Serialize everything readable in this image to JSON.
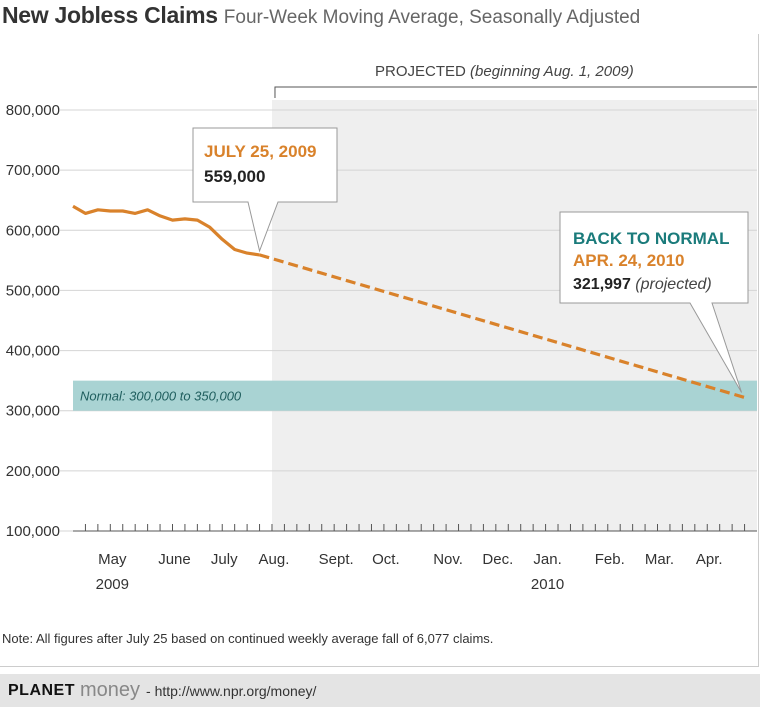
{
  "header": {
    "title": "New Jobless Claims",
    "subtitle": "Four-Week Moving Average, Seasonally Adjusted"
  },
  "note": "Note: All figures after July 25 based on continued weekly average fall of 6,077 claims.",
  "footer": {
    "brand_bold": "PLANET",
    "brand_light": "money",
    "url": "- http://www.npr.org/money/"
  },
  "colors": {
    "line": "#d9822b",
    "projected_band": "#efefef",
    "normal_band": "#a9d3d3",
    "teal_text": "#1a7b7b",
    "orange_text": "#d9822b"
  },
  "chart_data": {
    "type": "line",
    "ylim": [
      100000,
      800000
    ],
    "y_ticks": [
      100000,
      200000,
      300000,
      400000,
      500000,
      600000,
      700000,
      800000
    ],
    "y_tick_labels": [
      "100,000",
      "200,000",
      "300,000",
      "400,000",
      "500,000",
      "600,000",
      "700,000",
      "800,000"
    ],
    "x_range": [
      "2009-04-11",
      "2010-05-01"
    ],
    "x_tick_labels": [
      {
        "label": "May",
        "date": "2009-05-02"
      },
      {
        "label": "June",
        "date": "2009-06-06"
      },
      {
        "label": "July",
        "date": "2009-07-04"
      },
      {
        "label": "Aug.",
        "date": "2009-08-01"
      },
      {
        "label": "Sept.",
        "date": "2009-09-05"
      },
      {
        "label": "Oct.",
        "date": "2009-10-03"
      },
      {
        "label": "Nov.",
        "date": "2009-11-07"
      },
      {
        "label": "Dec.",
        "date": "2009-12-05"
      },
      {
        "label": "Jan.",
        "date": "2010-01-02"
      },
      {
        "label": "Feb.",
        "date": "2010-02-06"
      },
      {
        "label": "Mar.",
        "date": "2010-03-06"
      },
      {
        "label": "Apr.",
        "date": "2010-04-03"
      }
    ],
    "year_labels": [
      {
        "label": "2009",
        "date": "2009-05-02"
      },
      {
        "label": "2010",
        "date": "2010-01-02"
      }
    ],
    "series": [
      {
        "style": "solid",
        "points": [
          [
            "2009-04-11",
            640000
          ],
          [
            "2009-04-18",
            628000
          ],
          [
            "2009-04-25",
            634000
          ],
          [
            "2009-05-02",
            632000
          ],
          [
            "2009-05-09",
            632000
          ],
          [
            "2009-05-16",
            628000
          ],
          [
            "2009-05-23",
            634000
          ],
          [
            "2009-05-30",
            624000
          ],
          [
            "2009-06-06",
            617000
          ],
          [
            "2009-06-13",
            619000
          ],
          [
            "2009-06-20",
            617000
          ],
          [
            "2009-06-27",
            605000
          ],
          [
            "2009-07-04",
            585000
          ],
          [
            "2009-07-11",
            568000
          ],
          [
            "2009-07-18",
            562000
          ],
          [
            "2009-07-25",
            559000
          ]
        ]
      },
      {
        "style": "dashed",
        "points": [
          [
            "2009-07-25",
            559000
          ],
          [
            "2010-04-24",
            321997
          ]
        ]
      }
    ],
    "projected_region": {
      "start": "2009-08-01",
      "label": "PROJECTED",
      "label_note": "(beginning Aug. 1, 2009)"
    },
    "normal_band": {
      "range": [
        300000,
        350000
      ],
      "label": "Normal: 300,000 to 350,000"
    },
    "callouts": [
      {
        "date": "2009-07-25",
        "value": 559000,
        "line1": "JULY 25, 2009",
        "line2": "559,000"
      },
      {
        "date": "2010-04-24",
        "value": 321997,
        "line1": "BACK TO NORMAL",
        "line2": "APR. 24, 2010",
        "line3": "321,997",
        "line3_note": "(projected)"
      }
    ]
  }
}
